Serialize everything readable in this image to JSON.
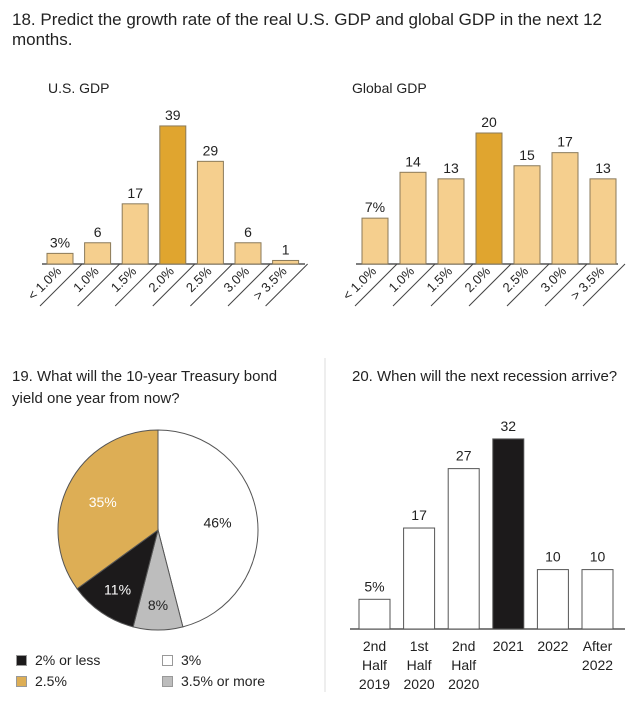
{
  "q18": {
    "title": "18. Predict the growth rate of the real U.S. GDP and global GDP in the next 12 months."
  },
  "q19": {
    "title": "19. What will the 10-year Treasury bond yield one year from now?"
  },
  "q20": {
    "title": "20. When will the next recession arrive?"
  },
  "chart_data": [
    {
      "type": "bar",
      "title": "U.S. GDP",
      "categories": [
        "< 1.0%",
        "1.0%",
        "1.5%",
        "2.0%",
        "2.5%",
        "3.0%",
        "> 3.5%"
      ],
      "values": [
        3,
        6,
        17,
        39,
        29,
        6,
        1
      ],
      "value_labels": [
        "3%",
        "6",
        "17",
        "39",
        "29",
        "6",
        "1"
      ],
      "highlight_index": 3,
      "colors": {
        "bar": "#f5cf8e",
        "highlight": "#e0a52f"
      }
    },
    {
      "type": "bar",
      "title": "Global GDP",
      "categories": [
        "< 1.0%",
        "1.0%",
        "1.5%",
        "2.0%",
        "2.5%",
        "3.0%",
        "> 3.5%"
      ],
      "values": [
        7,
        14,
        13,
        20,
        15,
        17,
        13
      ],
      "value_labels": [
        "7%",
        "14",
        "13",
        "20",
        "15",
        "17",
        "13"
      ],
      "highlight_index": 3,
      "colors": {
        "bar": "#f5cf8e",
        "highlight": "#e0a52f"
      }
    },
    {
      "type": "pie",
      "slices": [
        {
          "label": "3%",
          "value": 46,
          "text": "46%",
          "color": "#ffffff"
        },
        {
          "label": "3.5% or more",
          "value": 8,
          "text": "8%",
          "color": "#bdbdbd"
        },
        {
          "label": "2% or less",
          "value": 11,
          "text": "11%",
          "color": "#1c1a1b"
        },
        {
          "label": "2.5%",
          "value": 35,
          "text": "35%",
          "color": "#ddae55"
        }
      ],
      "legend": [
        {
          "label": "2% or less",
          "color": "#1c1a1b"
        },
        {
          "label": "3%",
          "color": "#ffffff"
        },
        {
          "label": "2.5%",
          "color": "#ddae55"
        },
        {
          "label": "3.5% or more",
          "color": "#bdbdbd"
        }
      ]
    },
    {
      "type": "bar",
      "categories": [
        [
          "2nd",
          "Half",
          "2019"
        ],
        [
          "1st",
          "Half",
          "2020"
        ],
        [
          "2nd",
          "Half",
          "2020"
        ],
        [
          "2021"
        ],
        [
          "2022"
        ],
        [
          "After",
          "2022"
        ]
      ],
      "values": [
        5,
        17,
        27,
        32,
        10,
        10
      ],
      "value_labels": [
        "5%",
        "17",
        "27",
        "32",
        "10",
        "10"
      ],
      "highlight_index": 3,
      "colors": {
        "bar": "#ffffff",
        "highlight": "#1c1a1b"
      }
    }
  ]
}
